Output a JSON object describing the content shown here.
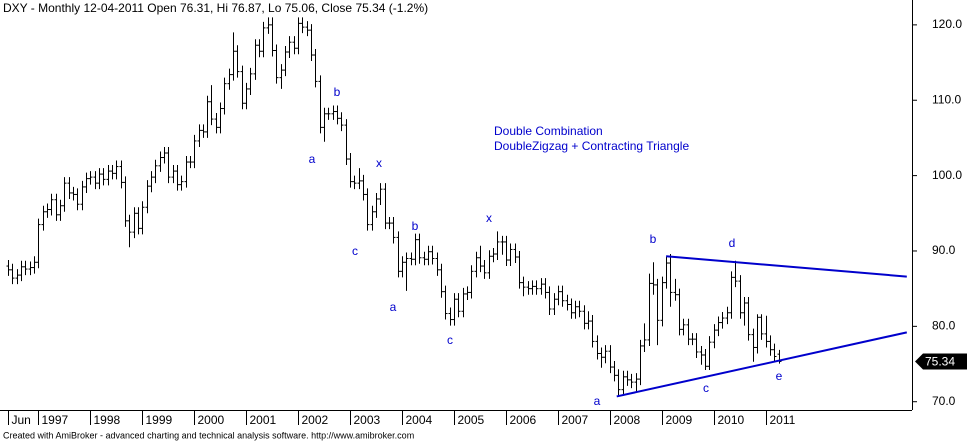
{
  "chart_data": {
    "type": "ohlc",
    "title": "DXY - Monthly 12-04-2011 Open 76.31, Hi 76.87, Lo 75.06, Close 75.34 (-1.2%)",
    "footer": "Created with AmiBroker - advanced charting and technical analysis software. http://www.amibroker.com",
    "annotations": [
      "Double Combination",
      "DoubleZigzag + Contracting Triangle"
    ],
    "wave_labels": [
      "a",
      "b",
      "x",
      "c",
      "b",
      "a",
      "x",
      "c",
      "b",
      "a",
      "c",
      "d",
      "e"
    ],
    "last_label": "75.34",
    "color": "#000000",
    "line_color": "#0000cc",
    "xlim": [
      -1.85,
      208.8
    ],
    "ylim": [
      68.9,
      123.3
    ],
    "yticks": [
      {
        "value": 70,
        "label": "70.0"
      },
      {
        "value": 80,
        "label": "80.0"
      },
      {
        "value": 90,
        "label": "90.0"
      },
      {
        "value": 100,
        "label": "100.0"
      },
      {
        "value": 110,
        "label": "110.0"
      },
      {
        "value": 120,
        "label": "120.0"
      }
    ],
    "xticks": [
      {
        "value": 0,
        "label": "Jun"
      },
      {
        "value": 7,
        "label": "1997"
      },
      {
        "value": 19,
        "label": "1998"
      },
      {
        "value": 31,
        "label": "1999"
      },
      {
        "value": 43,
        "label": "2000"
      },
      {
        "value": 55,
        "label": "2001"
      },
      {
        "value": 67,
        "label": "2002"
      },
      {
        "value": 79,
        "label": "2003"
      },
      {
        "value": 91,
        "label": "2004"
      },
      {
        "value": 103,
        "label": "2005"
      },
      {
        "value": 115,
        "label": "2006"
      },
      {
        "value": 127,
        "label": "2007"
      },
      {
        "value": 139,
        "label": "2008"
      },
      {
        "value": 151,
        "label": "2009"
      },
      {
        "value": 163,
        "label": "2010"
      },
      {
        "value": 175,
        "label": "2011"
      }
    ],
    "trendlines": [
      {
        "x": [
          152,
          207.6
        ],
        "y": [
          89.3,
          86.6
        ]
      },
      {
        "x": [
          140.6,
          207.6
        ],
        "y": [
          70.7,
          79.2
        ]
      }
    ],
    "bars": [
      [
        88.0,
        88.8,
        86.7,
        87.5
      ],
      [
        87.5,
        88.3,
        85.6,
        86.4
      ],
      [
        86.4,
        87.6,
        85.6,
        86.8
      ],
      [
        86.8,
        88.7,
        86.0,
        87.9
      ],
      [
        87.9,
        88.7,
        86.8,
        87.6
      ],
      [
        87.6,
        88.6,
        86.8,
        87.8
      ],
      [
        87.8,
        89.3,
        87.0,
        88.5
      ],
      [
        88.5,
        94.3,
        87.7,
        93.5
      ],
      [
        93.5,
        96.0,
        92.7,
        95.2
      ],
      [
        95.2,
        96.3,
        94.4,
        95.5
      ],
      [
        95.5,
        97.6,
        94.7,
        96.8
      ],
      [
        96.8,
        97.6,
        94.0,
        94.8
      ],
      [
        94.8,
        96.8,
        94.0,
        96.0
      ],
      [
        96.0,
        99.8,
        95.2,
        99.0
      ],
      [
        99.0,
        99.8,
        96.9,
        97.7
      ],
      [
        97.7,
        98.5,
        96.7,
        97.5
      ],
      [
        97.5,
        98.3,
        95.4,
        96.2
      ],
      [
        96.2,
        99.3,
        95.4,
        98.5
      ],
      [
        98.5,
        100.4,
        97.7,
        99.6
      ],
      [
        99.6,
        100.6,
        98.8,
        99.8
      ],
      [
        99.8,
        100.6,
        98.2,
        99.0
      ],
      [
        99.0,
        101.0,
        98.2,
        100.2
      ],
      [
        100.2,
        101.0,
        98.7,
        99.5
      ],
      [
        99.5,
        101.4,
        98.7,
        100.6
      ],
      [
        100.6,
        101.4,
        99.5,
        100.3
      ],
      [
        100.3,
        102.0,
        99.5,
        101.2
      ],
      [
        101.2,
        102.0,
        98.3,
        99.1
      ],
      [
        99.1,
        99.9,
        93.2,
        94.0
      ],
      [
        94.0,
        94.8,
        90.5,
        92.5
      ],
      [
        92.5,
        95.8,
        91.7,
        95.0
      ],
      [
        95.0,
        95.8,
        92.2,
        93.0
      ],
      [
        93.0,
        96.6,
        92.2,
        95.8
      ],
      [
        95.8,
        99.4,
        95.0,
        98.6
      ],
      [
        98.6,
        100.6,
        97.8,
        99.8
      ],
      [
        99.8,
        102.1,
        99.0,
        101.3
      ],
      [
        101.3,
        103.2,
        100.5,
        102.4
      ],
      [
        102.4,
        103.8,
        101.6,
        103.0
      ],
      [
        103.0,
        103.8,
        99.0,
        99.8
      ],
      [
        99.8,
        101.4,
        99.0,
        100.6
      ],
      [
        100.6,
        101.4,
        98.0,
        98.8
      ],
      [
        98.8,
        100.0,
        98.0,
        99.2
      ],
      [
        99.2,
        102.6,
        98.4,
        101.8
      ],
      [
        101.8,
        102.6,
        101.0,
        101.8
      ],
      [
        101.8,
        105.4,
        101.0,
        104.6
      ],
      [
        104.6,
        106.8,
        103.8,
        106.0
      ],
      [
        106.0,
        106.8,
        105.0,
        105.8
      ],
      [
        105.8,
        110.6,
        105.0,
        109.8
      ],
      [
        109.8,
        112.0,
        106.7,
        107.5
      ],
      [
        107.5,
        108.3,
        105.6,
        106.4
      ],
      [
        106.4,
        109.7,
        105.6,
        108.9
      ],
      [
        108.9,
        113.0,
        108.1,
        112.2
      ],
      [
        112.2,
        114.2,
        111.4,
        113.4
      ],
      [
        113.4,
        119.0,
        112.6,
        116.5
      ],
      [
        116.5,
        117.3,
        113.0,
        113.8
      ],
      [
        113.8,
        114.6,
        108.8,
        109.6
      ],
      [
        109.6,
        112.3,
        108.8,
        111.5
      ],
      [
        111.5,
        114.3,
        110.7,
        113.5
      ],
      [
        113.5,
        118.1,
        112.7,
        117.3
      ],
      [
        117.3,
        118.1,
        115.7,
        116.5
      ],
      [
        116.5,
        120.4,
        115.7,
        119.6
      ],
      [
        119.6,
        121.0,
        118.8,
        120.0
      ],
      [
        120.0,
        121.0,
        115.8,
        116.6
      ],
      [
        116.6,
        117.4,
        112.2,
        113.0
      ],
      [
        113.0,
        114.8,
        111.5,
        114.0
      ],
      [
        114.0,
        117.2,
        113.2,
        116.4
      ],
      [
        116.4,
        118.5,
        115.6,
        117.7
      ],
      [
        117.7,
        118.5,
        116.1,
        116.9
      ],
      [
        116.9,
        121.0,
        116.1,
        120.2
      ],
      [
        120.2,
        121.0,
        118.9,
        119.7
      ],
      [
        119.7,
        120.5,
        118.5,
        119.3
      ],
      [
        119.3,
        120.1,
        115.2,
        116.0
      ],
      [
        116.0,
        116.8,
        111.7,
        112.5
      ],
      [
        112.5,
        113.3,
        105.6,
        106.4
      ],
      [
        106.4,
        109.0,
        104.5,
        108.2
      ],
      [
        108.2,
        109.0,
        107.4,
        108.2
      ],
      [
        108.2,
        109.3,
        107.4,
        108.5
      ],
      [
        108.5,
        109.3,
        106.8,
        107.6
      ],
      [
        107.6,
        108.4,
        105.9,
        106.7
      ],
      [
        106.7,
        107.5,
        101.4,
        102.2
      ],
      [
        102.2,
        103.0,
        98.4,
        99.2
      ],
      [
        99.2,
        100.0,
        98.2,
        99.0
      ],
      [
        99.0,
        101.0,
        98.2,
        99.3
      ],
      [
        99.3,
        100.1,
        96.7,
        97.5
      ],
      [
        97.5,
        98.3,
        92.7,
        93.5
      ],
      [
        93.5,
        96.0,
        92.7,
        95.2
      ],
      [
        95.2,
        97.7,
        94.4,
        96.9
      ],
      [
        96.9,
        99.0,
        96.1,
        98.2
      ],
      [
        98.2,
        99.0,
        92.9,
        93.7
      ],
      [
        93.7,
        94.5,
        92.9,
        93.7
      ],
      [
        93.7,
        94.5,
        91.0,
        91.8
      ],
      [
        91.8,
        92.6,
        86.5,
        87.3
      ],
      [
        87.3,
        89.3,
        86.5,
        88.5
      ],
      [
        88.5,
        89.8,
        84.7,
        89.0
      ],
      [
        89.0,
        89.8,
        88.1,
        88.9
      ],
      [
        88.9,
        92.3,
        88.1,
        91.5
      ],
      [
        91.5,
        92.3,
        88.3,
        89.1
      ],
      [
        89.1,
        89.9,
        88.1,
        88.9
      ],
      [
        88.9,
        90.7,
        88.1,
        89.9
      ],
      [
        89.9,
        90.7,
        88.2,
        89.0
      ],
      [
        89.0,
        89.8,
        86.7,
        87.5
      ],
      [
        87.5,
        88.3,
        83.8,
        84.6
      ],
      [
        84.6,
        85.4,
        80.9,
        81.7
      ],
      [
        81.7,
        82.5,
        80.1,
        80.9
      ],
      [
        80.9,
        84.4,
        80.1,
        83.6
      ],
      [
        83.6,
        84.4,
        81.2,
        82.0
      ],
      [
        82.0,
        85.1,
        81.2,
        84.3
      ],
      [
        84.3,
        85.3,
        83.5,
        84.5
      ],
      [
        84.5,
        88.1,
        83.7,
        87.3
      ],
      [
        87.3,
        89.9,
        86.5,
        89.1
      ],
      [
        89.1,
        90.7,
        87.2,
        88.0
      ],
      [
        88.0,
        88.8,
        86.3,
        87.1
      ],
      [
        87.1,
        90.1,
        86.3,
        89.3
      ],
      [
        89.3,
        90.4,
        88.5,
        89.6
      ],
      [
        89.6,
        92.6,
        88.8,
        91.2
      ],
      [
        91.2,
        92.0,
        89.5,
        91.2
      ],
      [
        91.2,
        92.0,
        88.0,
        88.8
      ],
      [
        88.8,
        91.0,
        88.0,
        90.2
      ],
      [
        90.2,
        91.0,
        88.4,
        89.2
      ],
      [
        89.2,
        90.0,
        85.0,
        85.8
      ],
      [
        85.8,
        86.6,
        84.0,
        85.2
      ],
      [
        85.2,
        86.0,
        84.2,
        85.0
      ],
      [
        85.0,
        86.1,
        84.2,
        85.3
      ],
      [
        85.3,
        86.1,
        84.2,
        85.0
      ],
      [
        85.0,
        86.4,
        84.2,
        85.6
      ],
      [
        85.6,
        86.4,
        83.7,
        84.5
      ],
      [
        84.5,
        85.3,
        81.5,
        82.3
      ],
      [
        82.3,
        84.4,
        81.5,
        83.6
      ],
      [
        83.6,
        85.4,
        82.8,
        84.6
      ],
      [
        84.6,
        85.4,
        82.6,
        83.4
      ],
      [
        83.4,
        84.2,
        82.1,
        82.9
      ],
      [
        82.9,
        83.7,
        81.0,
        81.8
      ],
      [
        81.8,
        83.4,
        81.0,
        82.6
      ],
      [
        82.6,
        83.4,
        81.2,
        82.0
      ],
      [
        82.0,
        82.8,
        79.6,
        80.4
      ],
      [
        80.4,
        82.0,
        79.6,
        80.7
      ],
      [
        80.7,
        81.5,
        77.2,
        78.0
      ],
      [
        78.0,
        78.8,
        75.6,
        76.4
      ],
      [
        76.4,
        77.2,
        74.5,
        75.9
      ],
      [
        75.9,
        77.5,
        75.1,
        76.7
      ],
      [
        76.7,
        77.5,
        73.8,
        74.6
      ],
      [
        74.6,
        75.4,
        72.7,
        73.5
      ],
      [
        73.5,
        74.3,
        70.7,
        71.6
      ],
      [
        71.6,
        74.1,
        70.8,
        73.3
      ],
      [
        73.3,
        74.1,
        72.1,
        72.9
      ],
      [
        72.9,
        73.7,
        71.8,
        72.6
      ],
      [
        72.6,
        73.8,
        71.3,
        73.0
      ],
      [
        73.0,
        78.2,
        72.2,
        77.4
      ],
      [
        77.4,
        80.4,
        76.6,
        78.2
      ],
      [
        78.2,
        87.0,
        77.4,
        85.7
      ],
      [
        85.7,
        88.5,
        84.2,
        85.5
      ],
      [
        85.5,
        86.3,
        77.5,
        80.8
      ],
      [
        80.8,
        86.6,
        80.0,
        85.8
      ],
      [
        85.8,
        89.2,
        85.0,
        88.4
      ],
      [
        88.4,
        89.6,
        82.6,
        84.5
      ],
      [
        84.5,
        86.3,
        83.4,
        84.2
      ],
      [
        84.2,
        85.0,
        78.8,
        79.6
      ],
      [
        79.6,
        81.0,
        78.8,
        80.2
      ],
      [
        80.2,
        81.0,
        77.5,
        78.3
      ],
      [
        78.3,
        79.1,
        77.5,
        78.3
      ],
      [
        78.3,
        79.1,
        75.8,
        76.6
      ],
      [
        76.6,
        77.4,
        74.9,
        76.2
      ],
      [
        76.2,
        77.0,
        74.2,
        74.7
      ],
      [
        74.7,
        78.7,
        74.2,
        77.9
      ],
      [
        77.9,
        80.3,
        77.1,
        79.5
      ],
      [
        79.5,
        81.3,
        78.7,
        80.5
      ],
      [
        80.5,
        81.9,
        79.7,
        81.1
      ],
      [
        81.1,
        82.6,
        80.3,
        81.8
      ],
      [
        81.8,
        87.3,
        81.0,
        86.5
      ],
      [
        86.5,
        88.7,
        85.2,
        86.0
      ],
      [
        86.0,
        86.8,
        81.0,
        81.8
      ],
      [
        81.8,
        83.9,
        80.1,
        83.1
      ],
      [
        83.1,
        83.9,
        78.1,
        78.9
      ],
      [
        78.9,
        79.7,
        75.3,
        77.2
      ],
      [
        77.2,
        81.6,
        76.4,
        81.2
      ],
      [
        81.2,
        81.6,
        78.2,
        79.0
      ],
      [
        79.0,
        81.4,
        77.2,
        78.0
      ],
      [
        78.0,
        78.8,
        76.1,
        76.9
      ],
      [
        76.9,
        77.7,
        75.4,
        76.0
      ],
      [
        76.31,
        76.87,
        75.06,
        75.34
      ]
    ]
  }
}
